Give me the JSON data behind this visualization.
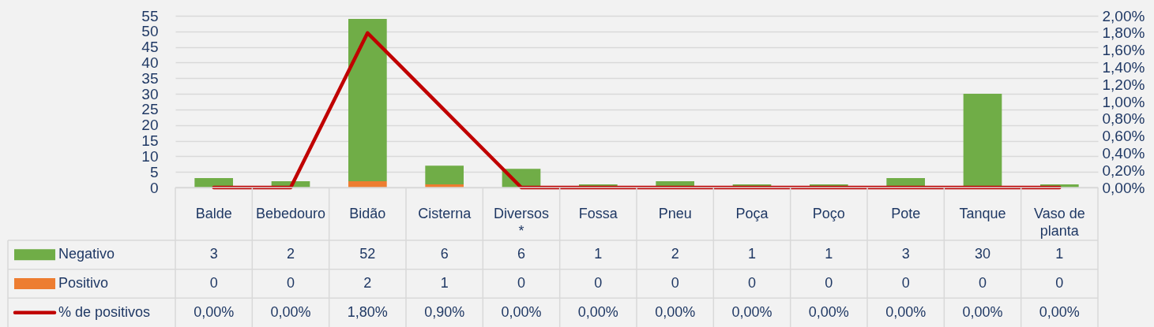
{
  "chart_data": {
    "type": "bar",
    "stacked": true,
    "categories": [
      "Balde",
      "Bebedouro",
      "Bidão",
      "Cisterna",
      "Diversos *",
      "Fossa",
      "Pneu",
      "Poça",
      "Poço",
      "Pote",
      "Tanque",
      "Vaso de planta"
    ],
    "series": [
      {
        "name": "Positivo",
        "color": "#ed7d31",
        "values": [
          0,
          0,
          2,
          1,
          0,
          0,
          0,
          0,
          0,
          0,
          0,
          0
        ],
        "value_labels": [
          "0",
          "0",
          "2",
          "1",
          "0",
          "0",
          "0",
          "0",
          "0",
          "0",
          "0",
          "0"
        ]
      },
      {
        "name": "Negativo",
        "color": "#70ad47",
        "values": [
          3,
          2,
          52,
          6,
          6,
          1,
          2,
          1,
          1,
          3,
          30,
          1
        ],
        "value_labels": [
          "3",
          "2",
          "52",
          "6",
          "6",
          "1",
          "2",
          "1",
          "1",
          "3",
          "30",
          "1"
        ]
      },
      {
        "name": "% de positivos",
        "type": "line",
        "axis": "y2",
        "color": "#c00000",
        "values": [
          0,
          0,
          1.8,
          0.9,
          0,
          0,
          0,
          0,
          0,
          0,
          0,
          0
        ],
        "value_labels": [
          "0,00%",
          "0,00%",
          "1,80%",
          "0,90%",
          "0,00%",
          "0,00%",
          "0,00%",
          "0,00%",
          "0,00%",
          "0,00%",
          "0,00%",
          "0,00%"
        ]
      }
    ],
    "ylim": [
      0,
      55
    ],
    "yticks": [
      0,
      5,
      10,
      15,
      20,
      25,
      30,
      35,
      40,
      45,
      50,
      55
    ],
    "y2lim": [
      0,
      2
    ],
    "y2ticks": [
      {
        "value": 0,
        "label": "0,00%"
      },
      {
        "value": 0.2,
        "label": "0,20%"
      },
      {
        "value": 0.4,
        "label": "0,40%"
      },
      {
        "value": 0.6,
        "label": "0,60%"
      },
      {
        "value": 0.8,
        "label": "0,80%"
      },
      {
        "value": 1.0,
        "label": "1,00%"
      },
      {
        "value": 1.2,
        "label": "1,20%"
      },
      {
        "value": 1.4,
        "label": "1,40%"
      },
      {
        "value": 1.6,
        "label": "1,60%"
      },
      {
        "value": 1.8,
        "label": "1,80%"
      },
      {
        "value": 2.0,
        "label": "2,00%"
      }
    ],
    "grid": "y",
    "legend": "bottom",
    "line_style": "solid"
  }
}
